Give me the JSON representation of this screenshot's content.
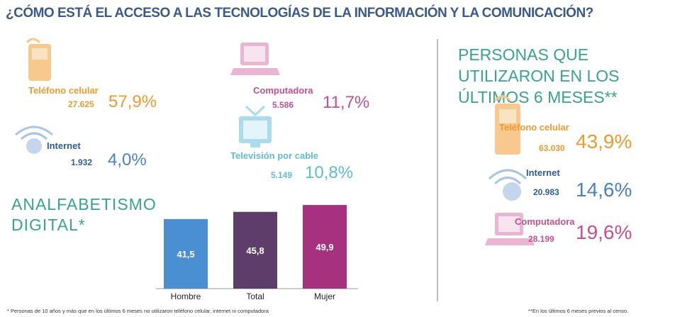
{
  "title": "¿CÓMO ESTÁ EL ACCESO A LAS TECNOLOGÍAS DE LA INFORMACIÓN Y LA COMUNICACIÓN?",
  "access": [
    {
      "label": "Teléfono celular",
      "count": "27.625",
      "percent": "57,9%"
    },
    {
      "label": "Computadora",
      "count": "5.586",
      "percent": "11,7%"
    },
    {
      "label": "Internet",
      "count": "1.932",
      "percent": "4,0%"
    },
    {
      "label": "Televisión por cable",
      "count": "5.149",
      "percent": "10,8%"
    }
  ],
  "chart_data": {
    "type": "bar",
    "title": "ANALFABETISMO DIGITAL*",
    "categories": [
      "Hombre",
      "Total",
      "Mujer"
    ],
    "values": [
      41.5,
      45.8,
      49.9
    ],
    "value_labels": [
      "41,5",
      "45,8",
      "49,9"
    ],
    "colors": [
      "#4a8fd2",
      "#5f3d6b",
      "#a6317f"
    ],
    "ylim": [
      0,
      55
    ]
  },
  "usage": {
    "title": "PERSONAS QUE UTILIZARON EN LOS ÚLTIMOS 6 MESES**",
    "items": [
      {
        "label": "Teléfono celular",
        "count": "63.030",
        "percent": "43,9%"
      },
      {
        "label": "Internet",
        "count": "20.983",
        "percent": "14,6%"
      },
      {
        "label": "Computadora",
        "count": "28.199",
        "percent": "19,6%"
      }
    ]
  },
  "footnotes": [
    "* Personas de 10 años y más que en los últimos 6 meses no utilizaron teléfono celular, internet ni computadora",
    "**En los últimos 6 meses previos al censo."
  ]
}
